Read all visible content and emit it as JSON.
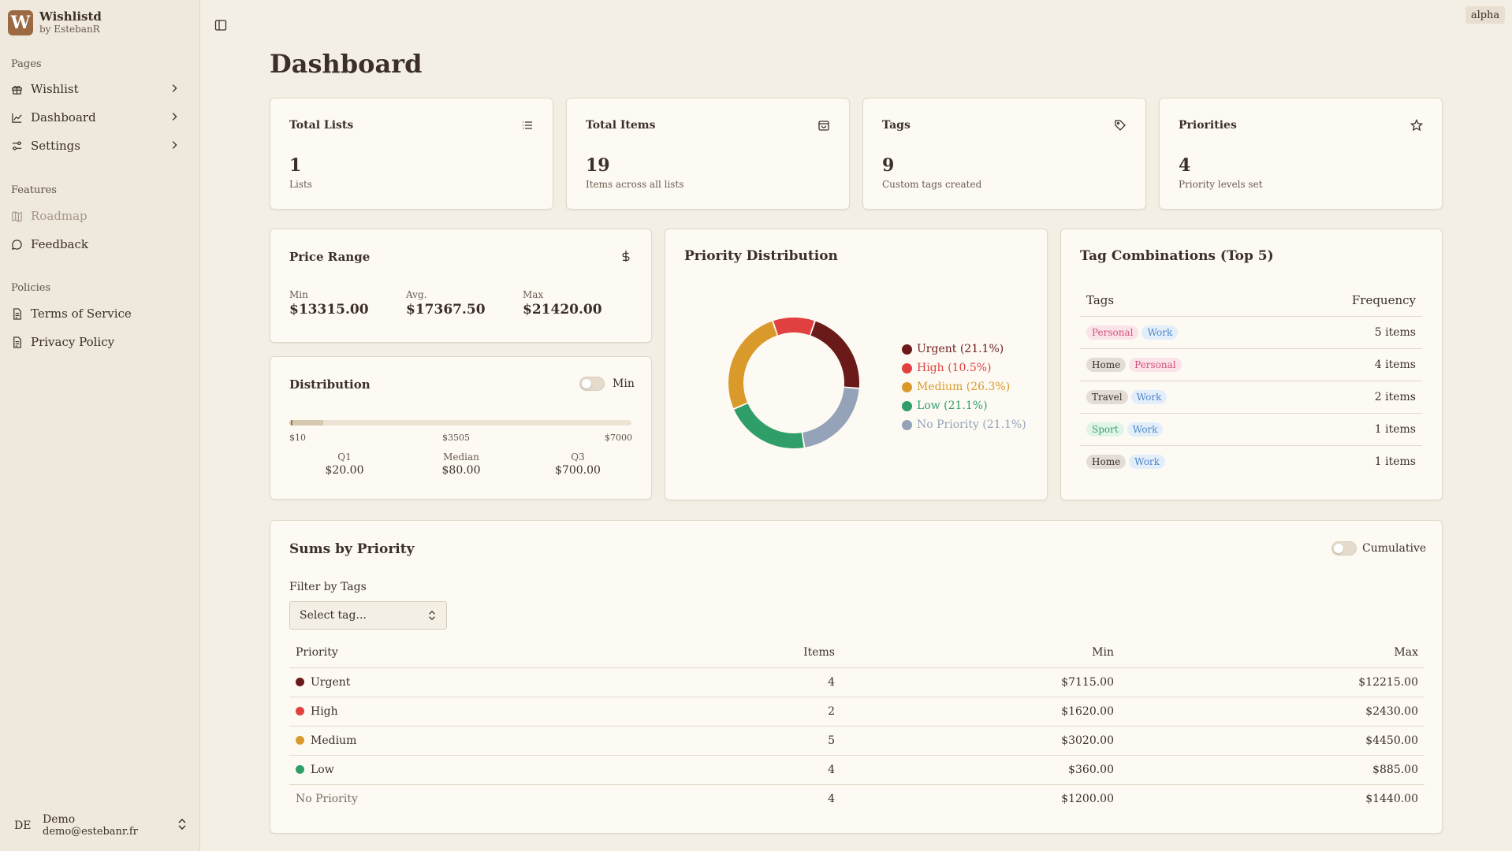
{
  "app": {
    "name": "Wishlistd",
    "byline": "by EstebanR",
    "logo_letter": "W",
    "badge": "alpha"
  },
  "sidebar": {
    "pages_label": "Pages",
    "pages": [
      {
        "label": "Wishlist",
        "icon": "gift-icon"
      },
      {
        "label": "Dashboard",
        "icon": "chart-icon"
      },
      {
        "label": "Settings",
        "icon": "sliders-icon"
      }
    ],
    "features_label": "Features",
    "features": [
      {
        "label": "Roadmap",
        "icon": "map-icon",
        "disabled": true
      },
      {
        "label": "Feedback",
        "icon": "message-icon"
      }
    ],
    "policies_label": "Policies",
    "policies": [
      {
        "label": "Terms of Service",
        "icon": "document-icon"
      },
      {
        "label": "Privacy Policy",
        "icon": "document-icon"
      }
    ],
    "user": {
      "initials": "DE",
      "name": "Demo",
      "email": "demo@estebanr.fr"
    }
  },
  "page": {
    "title": "Dashboard"
  },
  "stats": [
    {
      "title": "Total Lists",
      "value": "1",
      "sub": "Lists",
      "icon": "list-icon"
    },
    {
      "title": "Total Items",
      "value": "19",
      "sub": "Items across all lists",
      "icon": "bag-icon"
    },
    {
      "title": "Tags",
      "value": "9",
      "sub": "Custom tags created",
      "icon": "tag-icon"
    },
    {
      "title": "Priorities",
      "value": "4",
      "sub": "Priority levels set",
      "icon": "star-icon"
    }
  ],
  "price_range": {
    "title": "Price Range",
    "min_label": "Min",
    "min": "$13315.00",
    "avg_label": "Avg.",
    "avg": "$17367.50",
    "max_label": "Max",
    "max": "$21420.00"
  },
  "distribution": {
    "title": "Distribution",
    "toggle_label": "Min",
    "tick_min": "$10",
    "tick_mid": "$3505",
    "tick_max": "$7000",
    "q1_label": "Q1",
    "q1": "$20.00",
    "median_label": "Median",
    "median": "$80.00",
    "q3_label": "Q3",
    "q3": "$700.00"
  },
  "priority_distribution": {
    "title": "Priority Distribution",
    "items": [
      {
        "label": "Urgent (21.1%)",
        "value": 21.1,
        "color": "#6b1a1a"
      },
      {
        "label": "High (10.5%)",
        "value": 10.5,
        "color": "#e0403f"
      },
      {
        "label": "Medium (26.3%)",
        "value": 26.3,
        "color": "#d99a2b"
      },
      {
        "label": "Low (21.1%)",
        "value": 21.1,
        "color": "#2f9e68"
      },
      {
        "label": "No Priority (21.1%)",
        "value": 21.1,
        "color": "#94a3b8"
      }
    ]
  },
  "tag_combinations": {
    "title": "Tag Combinations (Top 5)",
    "col_tags": "Tags",
    "col_freq": "Frequency",
    "rows": [
      {
        "tags": [
          "Personal",
          "Work"
        ],
        "freq": "5 items"
      },
      {
        "tags": [
          "Home",
          "Personal"
        ],
        "freq": "4 items"
      },
      {
        "tags": [
          "Travel",
          "Work"
        ],
        "freq": "2 items"
      },
      {
        "tags": [
          "Sport",
          "Work"
        ],
        "freq": "1 items"
      },
      {
        "tags": [
          "Home",
          "Work"
        ],
        "freq": "1 items"
      }
    ],
    "tag_colors": {
      "Personal": {
        "bg": "#fbe3ea",
        "fg": "#d2527a"
      },
      "Work": {
        "bg": "#e3eefb",
        "fg": "#4f86c6"
      },
      "Home": {
        "bg": "#e2ddd6",
        "fg": "#3b2f28"
      },
      "Travel": {
        "bg": "#e2ddd6",
        "fg": "#3b2f28"
      },
      "Sport": {
        "bg": "#e1f4e8",
        "fg": "#3aa26b"
      }
    }
  },
  "sums": {
    "title": "Sums by Priority",
    "toggle_label": "Cumulative",
    "filter_label": "Filter by Tags",
    "select_placeholder": "Select tag...",
    "columns": [
      "Priority",
      "Items",
      "Min",
      "Max"
    ],
    "rows": [
      {
        "priority": "Urgent",
        "color": "#6b1a1a",
        "items": "4",
        "min": "$7115.00",
        "max": "$12215.00"
      },
      {
        "priority": "High",
        "color": "#e0403f",
        "items": "2",
        "min": "$1620.00",
        "max": "$2430.00"
      },
      {
        "priority": "Medium",
        "color": "#d99a2b",
        "items": "5",
        "min": "$3020.00",
        "max": "$4450.00"
      },
      {
        "priority": "Low",
        "color": "#2f9e68",
        "items": "4",
        "min": "$360.00",
        "max": "$885.00"
      },
      {
        "priority": "No Priority",
        "color": "",
        "items": "4",
        "min": "$1200.00",
        "max": "$1440.00"
      }
    ]
  }
}
